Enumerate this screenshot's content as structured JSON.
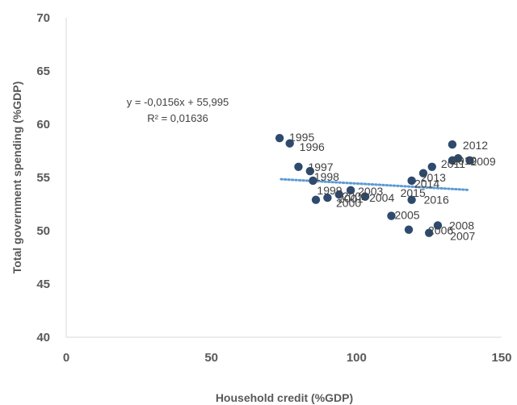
{
  "chart_data": {
    "type": "scatter",
    "title": "",
    "xlabel": "Household credit (%GDP)",
    "ylabel": "Total government spending (%GDP)",
    "xlim": [
      0,
      150
    ],
    "ylim": [
      40,
      70
    ],
    "xticks": [
      "0",
      "50",
      "100",
      "150"
    ],
    "yticks": [
      "40",
      "45",
      "50",
      "55",
      "60",
      "65",
      "70"
    ],
    "grid": false,
    "marker_color": "#2e4a6e",
    "trendline_color": "#5b9bd5",
    "trendline": {
      "slope": -0.0156,
      "intercept": 55.995,
      "x_range": [
        74,
        139
      ],
      "equation": "y = -0,0156x + 55,995",
      "r_squared": "R² = 0,01636"
    },
    "points": [
      {
        "label": "1995",
        "x": 73.5,
        "y": 58.7
      },
      {
        "label": "1996",
        "x": 77,
        "y": 58.2
      },
      {
        "label": "1997",
        "x": 80,
        "y": 56
      },
      {
        "label": "1998",
        "x": 84,
        "y": 55.6
      },
      {
        "label": "1999",
        "x": 85,
        "y": 54.7
      },
      {
        "label": "2000",
        "x": 86,
        "y": 52.9
      },
      {
        "label": "2001",
        "x": 90,
        "y": 53.1
      },
      {
        "label": "2002",
        "x": 94,
        "y": 53.4
      },
      {
        "label": "2003",
        "x": 98,
        "y": 53.8
      },
      {
        "label": "2004",
        "x": 103,
        "y": 53.2
      },
      {
        "label": "2005",
        "x": 112,
        "y": 51.4
      },
      {
        "label": "2006",
        "x": 118,
        "y": 50.1
      },
      {
        "label": "2007",
        "x": 125,
        "y": 49.8
      },
      {
        "label": "2008",
        "x": 128,
        "y": 50.5
      },
      {
        "label": "2009",
        "x": 139,
        "y": 56.6
      },
      {
        "label": "2010",
        "x": 135,
        "y": 56.8
      },
      {
        "label": "2011",
        "x": 133,
        "y": 56.6
      },
      {
        "label": "2012",
        "x": 133,
        "y": 58.1
      },
      {
        "label": "2013",
        "x": 126,
        "y": 56
      },
      {
        "label": "2014",
        "x": 123,
        "y": 55.4
      },
      {
        "label": "2015",
        "x": 119,
        "y": 54.7
      },
      {
        "label": "2016",
        "x": 119,
        "y": 52.9
      }
    ]
  }
}
